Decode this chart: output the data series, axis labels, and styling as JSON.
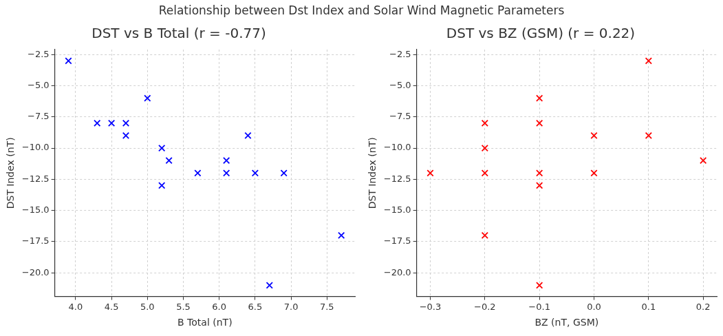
{
  "chart_data": [
    {
      "type": "scatter",
      "title": "DST vs B Total (r = -0.77)",
      "annotations": [
        "Relationship between Dst Index and Solar Wind Magnetic Parameters"
      ],
      "xlabel": "B Total (nT)",
      "ylabel": "DST Index (nT)",
      "series": [
        {
          "color": "#0000ff",
          "x": [
            3.9,
            4.3,
            4.5,
            4.7,
            4.7,
            5.0,
            5.2,
            5.3,
            5.2,
            5.7,
            6.1,
            6.1,
            6.4,
            6.5,
            6.9,
            6.7,
            7.7
          ],
          "values": [
            -3,
            -8,
            -8,
            -8,
            -9,
            -6,
            -10,
            -11,
            -13,
            -12,
            -11,
            -12,
            -9,
            -12,
            -12,
            -21,
            -17
          ]
        }
      ],
      "xlim": [
        3.71,
        7.89
      ],
      "xticks": [
        {
          "value": 4,
          "label": "4.0"
        },
        4.5,
        {
          "value": 5,
          "label": "5.0"
        },
        5.5,
        {
          "value": 6,
          "label": "6.0"
        },
        6.5,
        {
          "value": 7,
          "label": "7.0"
        },
        7.5
      ],
      "ylim": [
        -21.9,
        -2.1
      ],
      "yticks": [
        -2.5,
        {
          "value": -5,
          "label": "−5.0"
        },
        -7.5,
        {
          "value": -10,
          "label": "−10.0"
        },
        -12.5,
        {
          "value": -15,
          "label": "−15.0"
        },
        -17.5,
        {
          "value": -20,
          "label": "−20.0"
        }
      ],
      "marker": "cross",
      "grid": true
    },
    {
      "type": "scatter",
      "title": "DST vs BZ (GSM) (r = 0.22)",
      "xlabel": "BZ (nT, GSM)",
      "ylabel": "DST Index (nT)",
      "series": [
        {
          "color": "#ff0000",
          "x": [
            0.1,
            -0.1,
            -0.2,
            -0.1,
            0,
            0.1,
            -0.2,
            0.2,
            -0.3,
            -0.2,
            -0.1,
            0,
            -0.1,
            -0.2,
            -0.1
          ],
          "values": [
            -3,
            -6,
            -8,
            -8,
            -9,
            -9,
            -10,
            -11,
            -12,
            -12,
            -12,
            -12,
            -13,
            -17,
            -21
          ]
        }
      ],
      "xlim": [
        -0.325,
        0.225
      ],
      "xticks": [
        {
          "value": -0.3,
          "label": "−0.3"
        },
        {
          "value": -0.2,
          "label": "−0.2"
        },
        {
          "value": -0.1,
          "label": "−0.1"
        },
        {
          "value": 0,
          "label": "0.0"
        },
        0.1,
        0.2
      ],
      "ylim": [
        -21.9,
        -2.1
      ],
      "yticks": [
        -2.5,
        {
          "value": -5,
          "label": "−5.0"
        },
        -7.5,
        {
          "value": -10,
          "label": "−10.0"
        },
        -12.5,
        {
          "value": -15,
          "label": "−15.0"
        },
        -17.5,
        {
          "value": -20,
          "label": "−20.0"
        }
      ],
      "marker": "cross",
      "grid": true
    }
  ]
}
